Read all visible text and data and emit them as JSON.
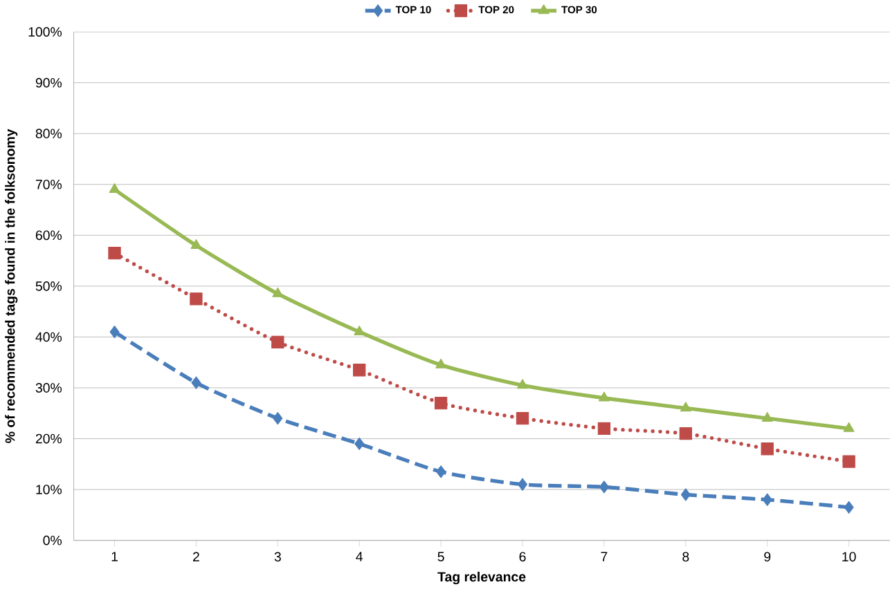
{
  "chart_data": {
    "type": "line",
    "xlabel": "Tag relevance",
    "ylabel": "% of recommended tags found in the folksonomy",
    "categories": [
      "1",
      "2",
      "3",
      "4",
      "5",
      "6",
      "7",
      "8",
      "9",
      "10"
    ],
    "series": [
      {
        "name": "TOP 10",
        "color": "#4a7ebb",
        "marker": "diamond",
        "line_style": "dashed",
        "values": [
          41,
          31,
          24,
          19,
          13.5,
          11,
          10.5,
          9,
          8,
          6.5
        ]
      },
      {
        "name": "TOP 20",
        "color": "#be4b48",
        "marker": "square",
        "line_style": "dotted",
        "values": [
          56.5,
          47.5,
          39,
          33.5,
          27,
          24,
          22,
          21,
          18,
          15.5
        ]
      },
      {
        "name": "TOP 30",
        "color": "#98b954",
        "marker": "triangle",
        "line_style": "solid",
        "values": [
          69,
          58,
          48.5,
          41,
          34.5,
          30.5,
          28,
          26,
          24,
          22
        ]
      }
    ],
    "ylim": [
      0,
      100
    ],
    "yticks": [
      {
        "value": 0,
        "label": "0%"
      },
      {
        "value": 10,
        "label": "10%"
      },
      {
        "value": 20,
        "label": "20%"
      },
      {
        "value": 30,
        "label": "30%"
      },
      {
        "value": 40,
        "label": "40%"
      },
      {
        "value": 50,
        "label": "50%"
      },
      {
        "value": 60,
        "label": "60%"
      },
      {
        "value": 70,
        "label": "70%"
      },
      {
        "value": 80,
        "label": "80%"
      },
      {
        "value": 90,
        "label": "90%"
      },
      {
        "value": 100,
        "label": "100%"
      }
    ],
    "grid": "y",
    "legend": "top"
  }
}
